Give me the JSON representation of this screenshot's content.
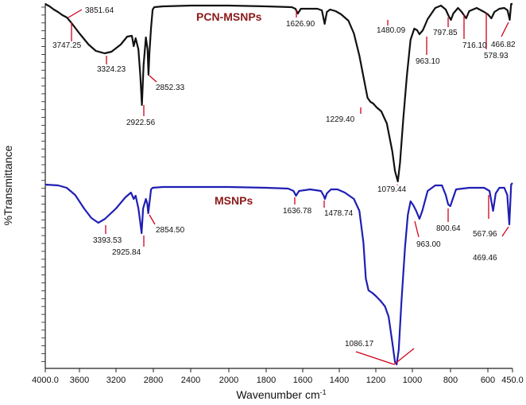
{
  "chart_data": {
    "type": "line",
    "xlabel": "Wavenumber cm",
    "xlabel_superscript": "-1",
    "ylabel": "%Transmittance",
    "x_ticks": [
      "4000.0",
      "3600",
      "3200",
      "2800",
      "2400",
      "2000",
      "1800",
      "1600",
      "1400",
      "1200",
      "1000",
      "800",
      "600",
      "450.0"
    ],
    "x_axis_reversed": true,
    "grid": false,
    "colors": {
      "pcn": "#111111",
      "msnps": "#1f1fb4",
      "marker": "#d0021b"
    },
    "series": [
      {
        "name": "PCN-MSNPs",
        "peaks": [
          {
            "label": "3851.64",
            "x": 3851.64
          },
          {
            "label": "3747.25",
            "x": 3747.25
          },
          {
            "label": "3324.23",
            "x": 3324.23
          },
          {
            "label": "2922.56",
            "x": 2922.56
          },
          {
            "label": "2852.33",
            "x": 2852.33
          },
          {
            "label": "1626.90",
            "x": 1626.9
          },
          {
            "label": "1480.09",
            "x": 1480.09
          },
          {
            "label": "1229.40",
            "x": 1229.4
          },
          {
            "label": "1079.44",
            "x": 1079.44
          },
          {
            "label": "963.10",
            "x": 963.1
          },
          {
            "label": "797.85",
            "x": 797.85
          },
          {
            "label": "716.10",
            "x": 716.1
          },
          {
            "label": "578.93",
            "x": 578.93
          },
          {
            "label": "466.82",
            "x": 466.82
          }
        ]
      },
      {
        "name": "MSNPs",
        "peaks": [
          {
            "label": "3393.53",
            "x": 3393.53
          },
          {
            "label": "2925.84",
            "x": 2925.84
          },
          {
            "label": "2854.50",
            "x": 2854.5
          },
          {
            "label": "1636.78",
            "x": 1636.78
          },
          {
            "label": "1478.74",
            "x": 1478.74
          },
          {
            "label": "1086.17",
            "x": 1086.17
          },
          {
            "label": "963.00",
            "x": 963.0
          },
          {
            "label": "800.64",
            "x": 800.64
          },
          {
            "label": "567.96",
            "x": 567.96
          },
          {
            "label": "469.46",
            "x": 469.46
          }
        ]
      }
    ]
  }
}
